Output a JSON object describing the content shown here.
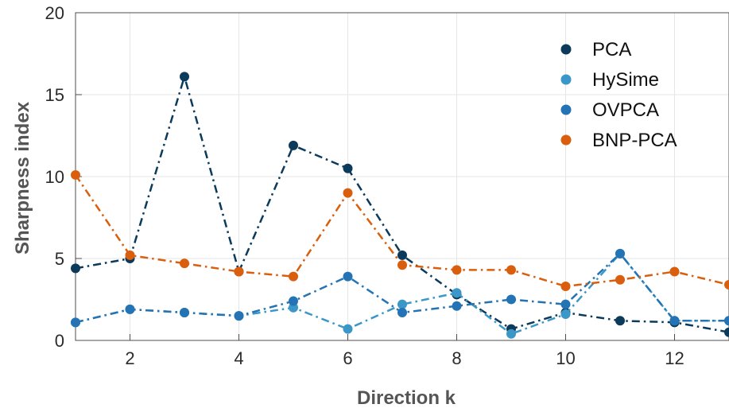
{
  "chart_data": {
    "type": "line",
    "xlabel": "Direction k",
    "ylabel": "Sharpness index",
    "xlim": [
      1,
      13
    ],
    "ylim": [
      0,
      20
    ],
    "xticks": [
      2,
      4,
      6,
      8,
      10,
      12
    ],
    "yticks": [
      0,
      5,
      10,
      15,
      20
    ],
    "grid": true,
    "legend_position": "top-right",
    "line_style": "dash-dot",
    "x": [
      1,
      2,
      3,
      4,
      5,
      6,
      7,
      8,
      9,
      10,
      11,
      12,
      13
    ],
    "series": [
      {
        "name": "PCA",
        "color": "#0b3a5b",
        "values": [
          4.4,
          5.0,
          16.1,
          4.2,
          11.9,
          10.5,
          5.2,
          2.8,
          0.7,
          1.7,
          1.2,
          1.1,
          0.5
        ]
      },
      {
        "name": "HySime",
        "color": "#3a97c8",
        "values": [
          1.1,
          1.9,
          1.7,
          1.5,
          2.0,
          0.7,
          2.2,
          2.9,
          0.4,
          1.6,
          5.3,
          1.2,
          1.2
        ]
      },
      {
        "name": "OVPCA",
        "color": "#2473b4",
        "values": [
          1.1,
          1.9,
          1.7,
          1.5,
          2.4,
          3.9,
          1.7,
          2.1,
          2.5,
          2.2,
          5.3,
          1.2,
          1.2
        ]
      },
      {
        "name": "BNP-PCA",
        "color": "#d95f0e",
        "values": [
          10.1,
          5.2,
          4.7,
          4.2,
          3.9,
          9.0,
          4.6,
          4.3,
          4.3,
          3.3,
          3.7,
          4.2,
          3.4
        ]
      }
    ]
  }
}
